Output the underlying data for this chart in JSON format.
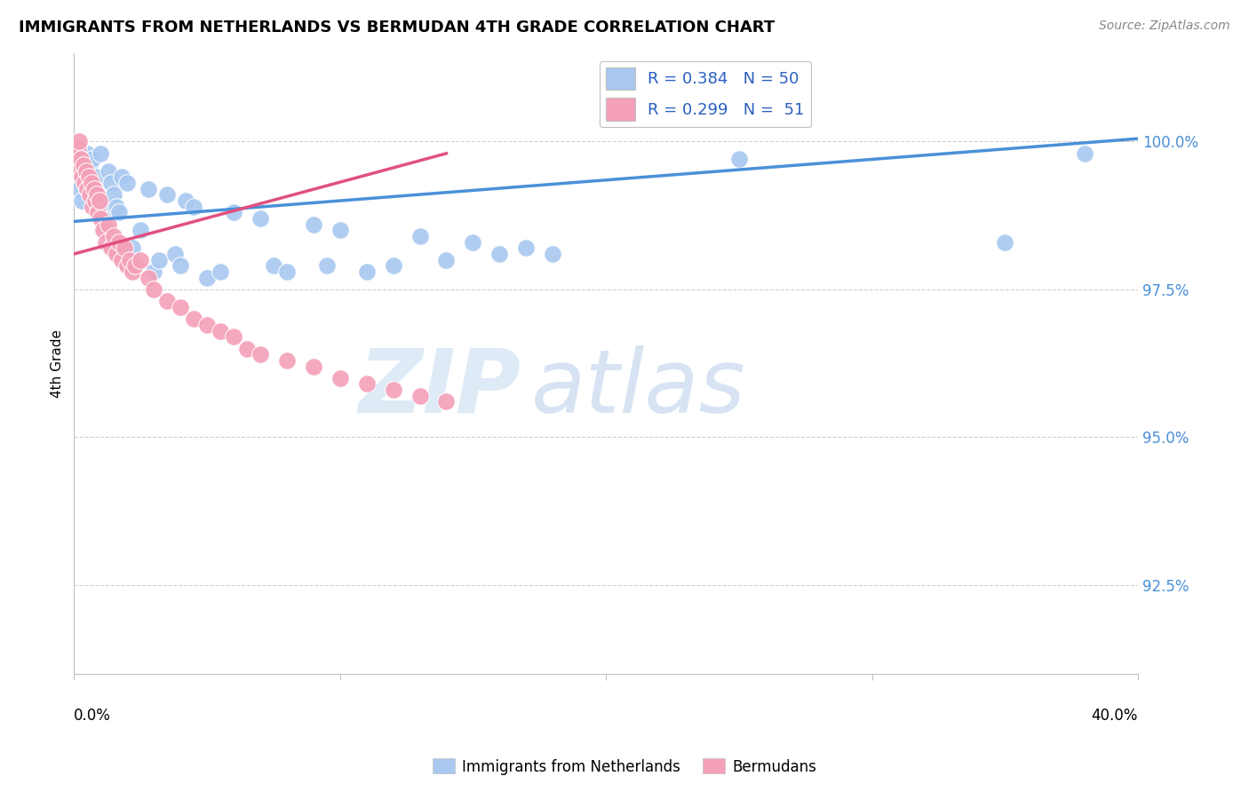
{
  "title": "IMMIGRANTS FROM NETHERLANDS VS BERMUDAN 4TH GRADE CORRELATION CHART",
  "source": "Source: ZipAtlas.com",
  "ylabel": "4th Grade",
  "y_ticks": [
    92.5,
    95.0,
    97.5,
    100.0
  ],
  "y_tick_labels": [
    "92.5%",
    "95.0%",
    "97.5%",
    "100.0%"
  ],
  "xlim": [
    0.0,
    40.0
  ],
  "ylim": [
    91.0,
    101.5
  ],
  "blue_R": 0.384,
  "blue_N": 50,
  "pink_R": 0.299,
  "pink_N": 51,
  "blue_color": "#a8c8f0",
  "pink_color": "#f4a0b8",
  "trend_blue": "#4a90d9",
  "trend_pink": "#e05080",
  "legend_blue_label": "R = 0.384   N = 50",
  "legend_pink_label": "R = 0.299   N =  51",
  "bottom_legend_blue": "Immigrants from Netherlands",
  "bottom_legend_pink": "Bermudans",
  "blue_x": [
    0.2,
    0.3,
    0.4,
    0.5,
    0.5,
    0.6,
    0.7,
    0.8,
    0.9,
    1.0,
    1.0,
    1.1,
    1.2,
    1.3,
    1.4,
    1.5,
    1.6,
    1.7,
    1.8,
    2.0,
    2.2,
    2.5,
    2.8,
    3.0,
    3.2,
    3.5,
    3.8,
    4.0,
    4.2,
    4.5,
    5.0,
    5.5,
    6.0,
    7.0,
    7.5,
    8.0,
    9.0,
    9.5,
    10.0,
    11.0,
    12.0,
    13.0,
    14.0,
    15.0,
    16.0,
    17.0,
    18.0,
    25.0,
    35.0,
    38.0
  ],
  "blue_y": [
    99.2,
    99.0,
    99.5,
    99.8,
    99.3,
    99.6,
    99.7,
    99.4,
    99.1,
    98.9,
    99.8,
    98.7,
    98.5,
    99.5,
    99.3,
    99.1,
    98.9,
    98.8,
    99.4,
    99.3,
    98.2,
    98.5,
    99.2,
    97.8,
    98.0,
    99.1,
    98.1,
    97.9,
    99.0,
    98.9,
    97.7,
    97.8,
    98.8,
    98.7,
    97.9,
    97.8,
    98.6,
    97.9,
    98.5,
    97.8,
    97.9,
    98.4,
    98.0,
    98.3,
    98.1,
    98.2,
    98.1,
    99.7,
    98.3,
    99.8
  ],
  "pink_x": [
    0.05,
    0.1,
    0.15,
    0.2,
    0.25,
    0.3,
    0.35,
    0.4,
    0.45,
    0.5,
    0.55,
    0.6,
    0.65,
    0.7,
    0.75,
    0.8,
    0.85,
    0.9,
    0.95,
    1.0,
    1.1,
    1.2,
    1.3,
    1.4,
    1.5,
    1.6,
    1.7,
    1.8,
    1.9,
    2.0,
    2.1,
    2.2,
    2.3,
    2.5,
    2.8,
    3.0,
    3.5,
    4.0,
    4.5,
    5.0,
    5.5,
    6.0,
    6.5,
    7.0,
    8.0,
    9.0,
    10.0,
    11.0,
    12.0,
    13.0,
    14.0
  ],
  "pink_y": [
    99.5,
    99.8,
    99.9,
    100.0,
    99.7,
    99.4,
    99.6,
    99.3,
    99.5,
    99.2,
    99.4,
    99.1,
    99.3,
    98.9,
    99.2,
    99.0,
    99.1,
    98.8,
    99.0,
    98.7,
    98.5,
    98.3,
    98.6,
    98.2,
    98.4,
    98.1,
    98.3,
    98.0,
    98.2,
    97.9,
    98.0,
    97.8,
    97.9,
    98.0,
    97.7,
    97.5,
    97.3,
    97.2,
    97.0,
    96.9,
    96.8,
    96.7,
    96.5,
    96.4,
    96.3,
    96.2,
    96.0,
    95.9,
    95.8,
    95.7,
    95.6
  ],
  "watermark_zip": "ZIP",
  "watermark_atlas": "atlas"
}
